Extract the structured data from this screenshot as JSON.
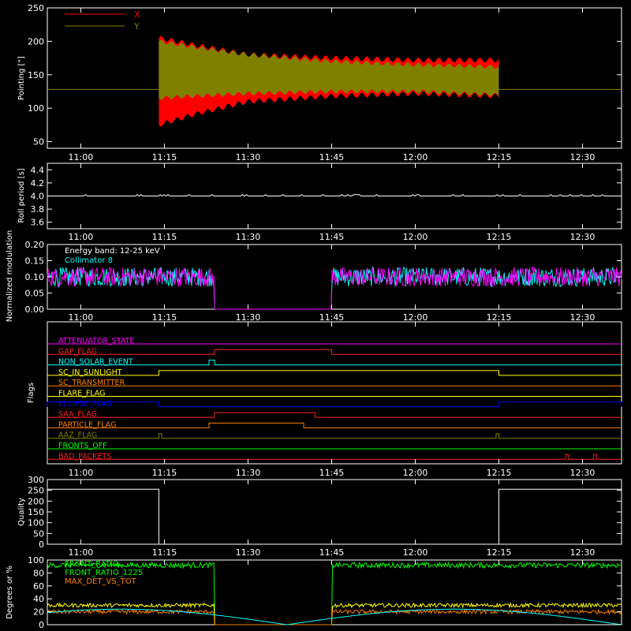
{
  "time_ticks": [
    "11:00",
    "11:15",
    "11:30",
    "11:45",
    "12:00",
    "12:15",
    "12:30"
  ],
  "chart_data": [
    {
      "type": "area",
      "id": "pointing",
      "ylabel": "Pointing [\"]",
      "ylim": [
        40,
        250
      ],
      "yticks": [
        "50",
        "100",
        "150",
        "200",
        "250"
      ],
      "x_range": [
        "10:54",
        "12:37"
      ],
      "reference_line": 128,
      "legend_placement": "top-left",
      "series": [
        {
          "name": "X",
          "color": "#ff0000",
          "x": [
            "11:14",
            "11:20",
            "11:30",
            "11:45",
            "12:00",
            "12:15"
          ],
          "upper": [
            205,
            195,
            180,
            175,
            172,
            172
          ],
          "lower": [
            75,
            90,
            110,
            118,
            122,
            118
          ]
        },
        {
          "name": "Y",
          "color": "#808000",
          "x": [
            "11:14",
            "11:20",
            "11:30",
            "11:45",
            "12:00",
            "12:15"
          ],
          "upper": [
            200,
            192,
            180,
            170,
            165,
            162
          ],
          "lower": [
            115,
            118,
            122,
            125,
            125,
            120
          ]
        }
      ]
    },
    {
      "type": "line",
      "id": "roll",
      "ylabel": "Roll period [s]",
      "ylim": [
        3.5,
        4.5
      ],
      "yticks": [
        "3.6",
        "3.8",
        "4.0",
        "4.2",
        "4.4"
      ],
      "series": [
        {
          "name": "",
          "color": "#ffffff",
          "value": 4.0
        }
      ]
    },
    {
      "type": "line",
      "id": "modulation",
      "ylabel": "Normalized modulation",
      "ylim": [
        0,
        0.2
      ],
      "yticks": [
        "0.00",
        "0.05",
        "0.10",
        "0.15",
        "0.20"
      ],
      "legend_placement": "top-left",
      "series": [
        {
          "name": "Energy band: 12-25 keV",
          "color": "#ffffff"
        },
        {
          "name": "Collimator 8",
          "color": "#00ffff",
          "mean": 0.1
        },
        {
          "name": "",
          "color": "#ff00ff",
          "mean": 0.1
        }
      ],
      "gap": [
        "11:24",
        "11:45"
      ]
    },
    {
      "type": "line",
      "id": "flags",
      "ylabel": "Flags",
      "flags": [
        {
          "name": "ATTENUATOR_STATE",
          "color": "#ff00ff",
          "segments": []
        },
        {
          "name": "GAP_FLAG",
          "color": "#ff2020",
          "segments": [
            [
              "11:24",
              "11:45"
            ]
          ]
        },
        {
          "name": "NON_SOLAR_EVENT",
          "color": "#00ffff",
          "segments": [
            [
              "11:23",
              "11:24"
            ]
          ]
        },
        {
          "name": "SC_IN_SUNLIGHT",
          "color": "#ffff00",
          "segments": [
            [
              "11:14",
              "12:15"
            ]
          ]
        },
        {
          "name": "SC_TRANSMITTER",
          "color": "#ff8000",
          "segments": []
        },
        {
          "name": "FLARE_FLAG",
          "color": "#ffff00",
          "segments": []
        },
        {
          "name": "ECLIPSE_FLAG",
          "color": "#0000ff",
          "segments": [
            [
              "10:54",
              "11:14"
            ],
            [
              "12:15",
              "12:37"
            ]
          ]
        },
        {
          "name": "SAA_FLAG",
          "color": "#ff2020",
          "segments": [
            [
              "11:24",
              "11:42"
            ]
          ]
        },
        {
          "name": "PARTICLE_FLAG",
          "color": "#ff8000",
          "segments": [
            [
              "11:23",
              "11:40"
            ]
          ]
        },
        {
          "name": "AAZ_FLAG",
          "color": "#808000",
          "segments": [
            [
              "11:14",
              "11:14.5"
            ],
            [
              "12:14.5",
              "12:15"
            ]
          ]
        },
        {
          "name": "FRONTS_OFF",
          "color": "#00ff00",
          "segments": []
        },
        {
          "name": "BAD_PACKETS",
          "color": "#ff2020",
          "segments": [
            [
              "12:27",
              "12:27.3"
            ],
            [
              "12:32",
              "12:32.3"
            ]
          ]
        }
      ]
    },
    {
      "type": "line",
      "id": "quality",
      "ylabel": "Quality",
      "ylim": [
        0,
        300
      ],
      "yticks": [
        "0",
        "50",
        "100",
        "150",
        "200",
        "250",
        "300"
      ],
      "series": [
        {
          "name": "",
          "color": "#ffffff",
          "points": [
            [
              "10:54",
              255
            ],
            [
              "11:14",
              255
            ],
            [
              "11:14",
              0
            ],
            [
              "12:15",
              0
            ],
            [
              "12:15",
              255
            ],
            [
              "12:37",
              255
            ]
          ]
        }
      ]
    },
    {
      "type": "line",
      "id": "ratios",
      "ylabel": "Degrees or %",
      "ylim": [
        0,
        100
      ],
      "yticks": [
        "0",
        "20",
        "40",
        "60",
        "80",
        "100"
      ],
      "legend_placement": "top-left",
      "series": [
        {
          "name": "FRONT_RATIO",
          "color": "#00ff00",
          "mean": 92
        },
        {
          "name": "FRONT_RATIO_1225",
          "color": "#ffff00",
          "mean": 30
        },
        {
          "name": "MAX_DET_VS_TOT",
          "color": "#ff8000",
          "mean": 20
        },
        {
          "name": "",
          "color": "#00ffff"
        }
      ]
    }
  ]
}
